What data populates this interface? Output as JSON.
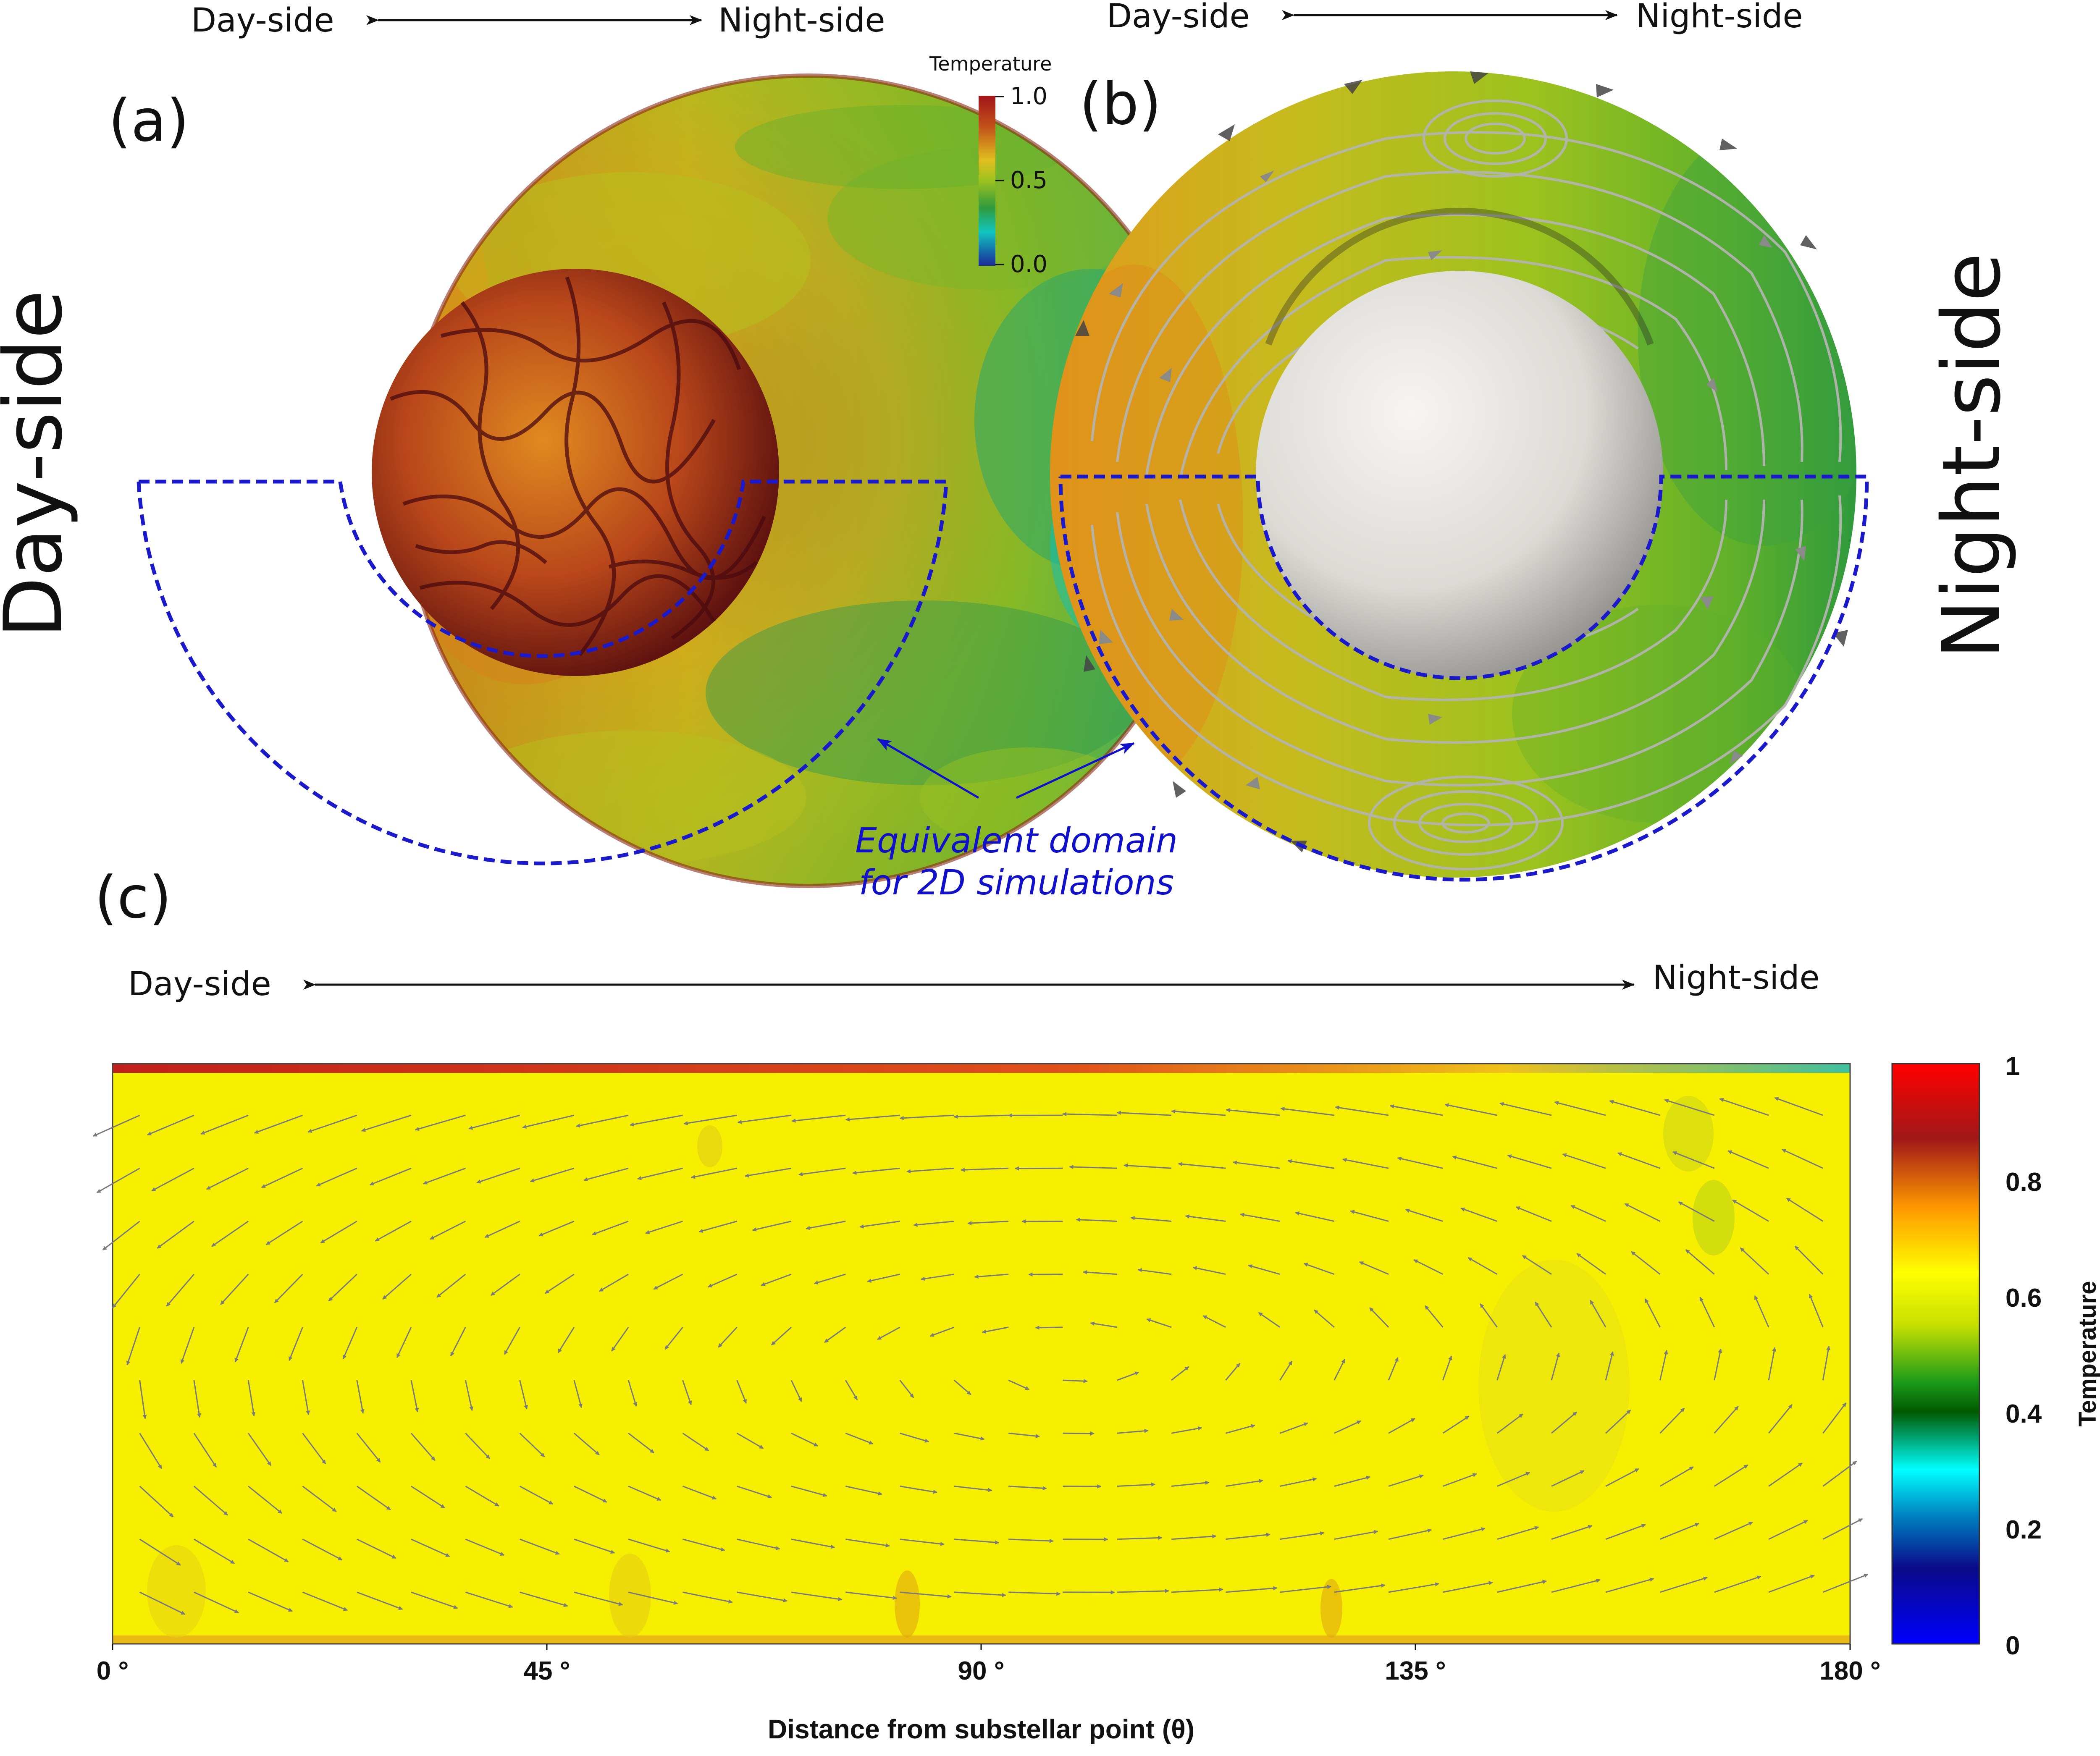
{
  "top_labels": {
    "a_left": "Day-side",
    "a_right": "Night-side",
    "b_left": "Day-side",
    "b_right": "Night-side"
  },
  "panel_labels": {
    "a": "(a)",
    "b": "(b)",
    "c": "(c)"
  },
  "side_labels": {
    "left": "Day-side",
    "right": "Night-side"
  },
  "colorbar_top": {
    "title": "Temperature",
    "ticks": [
      "1.0",
      "0.5",
      "0.0"
    ],
    "colors": [
      "#a3151a",
      "#c0501a",
      "#e0c020",
      "#9cc21e",
      "#2f9a3c",
      "#10c6c0",
      "#1a2a9a"
    ]
  },
  "annotation": {
    "line1": "Equivalent domain",
    "line2": "for 2D simulations",
    "color": "#1010cc"
  },
  "panel_c": {
    "arrow_left": "Day-side",
    "arrow_right": "Night-side",
    "xticks": [
      "0 °",
      "45 °",
      "90 °",
      "135 °",
      "180 °"
    ],
    "xlabel": "Distance from substellar point (θ)",
    "colorbar": {
      "title": "Temperature",
      "ticks": [
        "1",
        "0.8",
        "0.6",
        "0.4",
        "0.2",
        "0"
      ],
      "colors": [
        "#ff0000",
        "#a01818",
        "#ff9a00",
        "#ffff00",
        "#1a9a1a",
        "#005a00",
        "#00ffff",
        "#0a0a8a",
        "#0000ff"
      ]
    }
  },
  "colors": {
    "domain_outline": "#1a1acc",
    "field_yellow": "#f6f000",
    "sphere_b": "#e8e6e2"
  }
}
